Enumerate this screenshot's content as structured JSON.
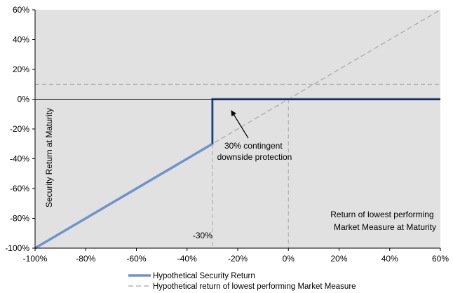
{
  "chart_data": {
    "type": "line",
    "title": "",
    "xlabel": "Return of lowest performing Market Measure at Maturity",
    "xlabel_lines": [
      "Return of lowest performing",
      "Market Measure at Maturity"
    ],
    "ylabel": "Security Return at Maturity",
    "xlim": [
      -100,
      60
    ],
    "ylim": [
      -100,
      60
    ],
    "x_ticks": [
      -100,
      -80,
      -60,
      -40,
      -20,
      0,
      20,
      40,
      60
    ],
    "y_ticks": [
      -100,
      -80,
      -60,
      -40,
      -20,
      0,
      20,
      40,
      60
    ],
    "x_tick_labels": [
      "-100%",
      "-80%",
      "-60%",
      "-40%",
      "-20%",
      "0%",
      "20%",
      "40%",
      "60%"
    ],
    "y_tick_labels": [
      "-100%",
      "-80%",
      "-60%",
      "-40%",
      "-20%",
      "0%",
      "20%",
      "40%",
      "60%"
    ],
    "grid": false,
    "background_color": "#e1e1e1",
    "legend_position": "bottom",
    "series": [
      {
        "name": "Hypothetical Security Return",
        "style": "solid",
        "color": "#6f93cc",
        "points": [
          [
            -100,
            -100
          ],
          [
            -30,
            -30
          ],
          [
            -30,
            0
          ],
          [
            60,
            0
          ]
        ]
      },
      {
        "name": "Hypothetical return of lowest performing Market Measure",
        "style": "dashed",
        "color": "#a6a6a6",
        "points": [
          [
            -100,
            -100
          ],
          [
            60,
            60
          ]
        ]
      }
    ],
    "reference_lines": [
      {
        "axis": "y",
        "value": 10,
        "style": "dashed",
        "color": "#a6a6a6"
      },
      {
        "axis": "x",
        "value": -30,
        "style": "dashed",
        "color": "#a6a6a6"
      },
      {
        "axis": "x",
        "value": 0,
        "style": "dashed",
        "color": "#a6a6a6"
      },
      {
        "axis": "y",
        "value": 0,
        "style": "solid",
        "color": "#000000"
      }
    ],
    "annotations": [
      {
        "id": "protection",
        "lines": [
          "30% contingent",
          "downside protection"
        ],
        "arrow_to": [
          -30,
          0
        ]
      },
      {
        "id": "barrier",
        "text": "-30%",
        "x": -30
      }
    ]
  }
}
